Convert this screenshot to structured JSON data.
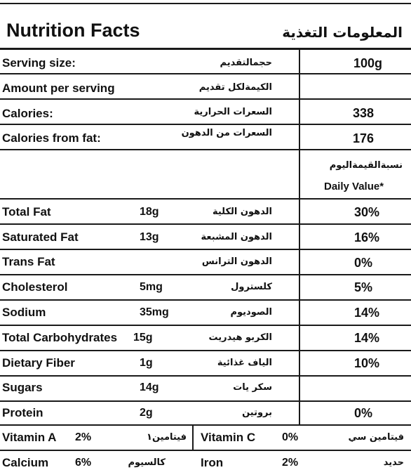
{
  "header": {
    "title_en": "Nutrition Facts",
    "title_ar": "المعلومات التغذية"
  },
  "serving": {
    "size": {
      "en": "Serving size:",
      "ar": "حجمالتقديم",
      "value": "100g"
    },
    "amount": {
      "en": "Amount per serving",
      "ar": "الكيمةلكل تقديم"
    },
    "calories": {
      "en": "Calories:",
      "ar": "السعرات الحرارية",
      "value": "338"
    },
    "calories_fat": {
      "en": "Calories from fat:",
      "ar": "السعرات من الدهون",
      "value": "176"
    }
  },
  "dv_header": {
    "ar": "نسبةالقيمةاليوم",
    "en": "Daily Value*"
  },
  "nutrients": [
    {
      "en": "Total Fat",
      "amount": "18g",
      "ar": "الدهون الكلية",
      "dv": "30%"
    },
    {
      "en": "Saturated Fat",
      "amount": "13g",
      "ar": "الدهون المشبعة",
      "dv": "16%"
    },
    {
      "en": "Trans Fat",
      "amount": "",
      "ar": "الدهون الترانس",
      "dv": "0%"
    },
    {
      "en": "Cholesterol",
      "amount": "5mg",
      "ar": "كلسترول",
      "dv": "5%"
    },
    {
      "en": "Sodium",
      "amount": "35mg",
      "ar": "الصوديوم",
      "dv": "14%"
    },
    {
      "en": "Total Carbohydrates",
      "amount": "15g",
      "ar": "الكربو هيدريت",
      "dv": "14%"
    },
    {
      "en": "Dietary Fiber",
      "amount": "1g",
      "ar": "الياف غذائية",
      "dv": "10%"
    },
    {
      "en": "Sugars",
      "amount": "14g",
      "ar": "سكر يات",
      "dv": ""
    },
    {
      "en": "Protein",
      "amount": "2g",
      "ar": "بروتين",
      "dv": "0%"
    }
  ],
  "vitamins": {
    "a": {
      "en": "Vitamin A",
      "pct": "2%",
      "ar": "فيتامين١"
    },
    "c": {
      "en": "Vitamin C",
      "pct": "0%",
      "ar": "فيتامين سي"
    },
    "calcium": {
      "en": "Calcium",
      "pct": "6%",
      "ar": "كالسيوم"
    },
    "iron": {
      "en": "Iron",
      "pct": "2%",
      "ar": "حديد"
    }
  }
}
